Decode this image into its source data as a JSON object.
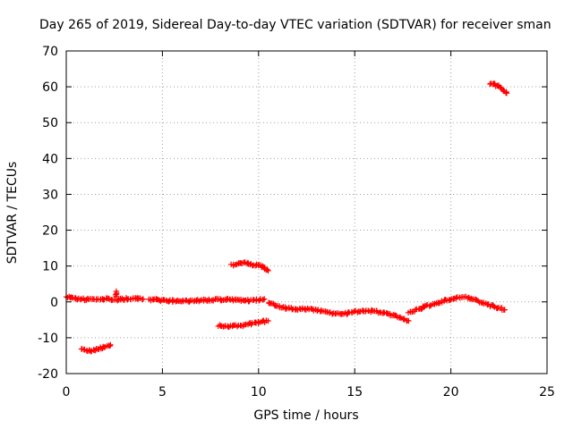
{
  "chart_data": {
    "type": "scatter",
    "title": "Day 265 of 2019, Sidereal Day-to-day VTEC variation (SDTVAR) for receiver sman",
    "xlabel": "GPS time / hours",
    "ylabel": "SDTVAR / TECUs",
    "xlim": [
      0,
      25
    ],
    "ylim": [
      -20,
      70
    ],
    "xticks": [
      0,
      5,
      10,
      15,
      20,
      25
    ],
    "yticks": [
      -20,
      -10,
      0,
      10,
      20,
      30,
      40,
      50,
      60,
      70
    ],
    "grid": true,
    "marker": "+",
    "series_color": "#ff0000",
    "series": [
      {
        "name": "segment-1",
        "x": [
          0.0,
          0.3,
          0.6,
          1.0,
          1.4,
          1.8,
          2.2,
          2.5
        ],
        "y": [
          1.5,
          1.0,
          0.8,
          0.7,
          0.8,
          0.9,
          0.8,
          0.6
        ]
      },
      {
        "name": "segment-2",
        "x": [
          2.6,
          2.9,
          3.2,
          3.5,
          3.8,
          4.0
        ],
        "y": [
          0.5,
          0.7,
          0.9,
          1.0,
          0.9,
          0.8
        ]
      },
      {
        "name": "segment-3",
        "x": [
          4.3,
          4.8,
          5.3,
          5.8,
          6.3,
          6.8,
          7.3,
          7.8,
          8.3,
          8.8,
          9.3,
          9.8,
          10.3
        ],
        "y": [
          0.7,
          0.5,
          0.3,
          0.2,
          0.2,
          0.3,
          0.5,
          0.6,
          0.7,
          0.6,
          0.3,
          0.5,
          0.8
        ]
      },
      {
        "name": "segment-4",
        "x": [
          10.5,
          11.0,
          11.5,
          12.0,
          12.5,
          13.0,
          13.5,
          14.0,
          14.5,
          15.0,
          15.5,
          16.0,
          16.5,
          17.0,
          17.5,
          17.8
        ],
        "y": [
          -0.3,
          -1.2,
          -1.8,
          -2.0,
          -2.0,
          -2.3,
          -2.8,
          -3.2,
          -3.3,
          -2.8,
          -2.5,
          -2.6,
          -3.0,
          -3.8,
          -4.5,
          -5.3
        ]
      },
      {
        "name": "segment-5",
        "x": [
          17.8,
          18.3,
          18.8,
          19.3,
          19.8,
          20.3,
          20.8,
          21.3,
          21.8,
          22.3,
          22.8
        ],
        "y": [
          -3.0,
          -2.0,
          -1.0,
          -0.2,
          0.5,
          1.2,
          1.3,
          0.5,
          -0.5,
          -1.5,
          -2.2
        ]
      },
      {
        "name": "segment-6",
        "x": [
          0.8,
          1.1,
          1.4,
          1.7,
          2.0,
          2.3
        ],
        "y": [
          -13.2,
          -13.8,
          -13.6,
          -13.0,
          -12.5,
          -12.0
        ]
      },
      {
        "name": "segment-7",
        "x": [
          7.9,
          8.3,
          8.7,
          9.1,
          9.5,
          9.9,
          10.2,
          10.5
        ],
        "y": [
          -6.5,
          -6.7,
          -6.8,
          -6.6,
          -6.2,
          -5.8,
          -5.5,
          -5.3
        ]
      },
      {
        "name": "segment-8",
        "x": [
          8.6,
          8.9,
          9.2,
          9.5,
          9.8,
          10.1,
          10.3,
          10.5
        ],
        "y": [
          10.2,
          10.6,
          10.8,
          10.6,
          10.3,
          10.0,
          9.5,
          8.7
        ]
      },
      {
        "name": "segment-9",
        "x": [
          22.0,
          22.2,
          22.4,
          22.6,
          22.8,
          22.9
        ],
        "y": [
          61.0,
          60.8,
          60.3,
          59.6,
          58.8,
          58.2
        ]
      },
      {
        "name": "spike",
        "x": [
          2.6,
          2.6
        ],
        "y": [
          2.8,
          1.5
        ]
      }
    ]
  }
}
